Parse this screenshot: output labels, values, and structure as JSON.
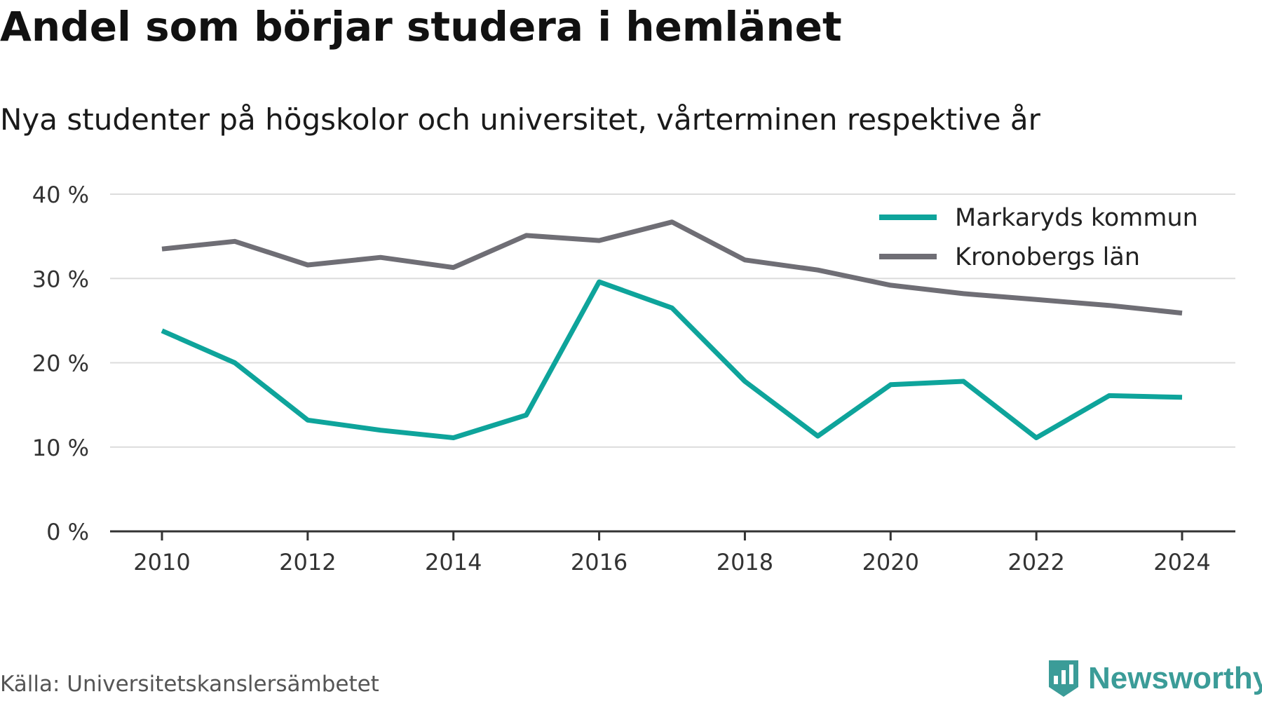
{
  "title": "Andel som börjar studera i hemlänet",
  "subtitle": "Nya studenter på högskolor och universitet, vårterminen respektive år",
  "source": "Källa: Universitetskanslersämbetet",
  "brand": {
    "name": "Newsworthy",
    "icon": "newsworthy-logo-icon",
    "color": "#3b9c98"
  },
  "chart_data": {
    "type": "line",
    "x": [
      2010,
      2011,
      2012,
      2013,
      2014,
      2015,
      2016,
      2017,
      2018,
      2019,
      2020,
      2021,
      2022,
      2023,
      2024
    ],
    "x_ticks": [
      "2010",
      "2012",
      "2014",
      "2016",
      "2018",
      "2020",
      "2022",
      "2024"
    ],
    "y_ticks": [
      "0 %",
      "10 %",
      "20 %",
      "30 %",
      "40 %"
    ],
    "ylim": [
      0,
      40
    ],
    "xlim": [
      2010,
      2024
    ],
    "grid": true,
    "legend_position": "top-right",
    "series": [
      {
        "name": "Markaryds kommun",
        "color": "#0ea49b",
        "values": [
          23.8,
          20.0,
          13.2,
          12.0,
          11.1,
          13.8,
          29.6,
          26.5,
          17.8,
          11.3,
          17.4,
          17.8,
          11.1,
          16.1,
          15.9
        ]
      },
      {
        "name": "Kronobergs län",
        "color": "#6f6e75",
        "values": [
          33.5,
          34.4,
          31.6,
          32.5,
          31.3,
          35.1,
          34.5,
          36.7,
          32.2,
          31.0,
          29.2,
          28.2,
          27.5,
          26.8,
          25.9
        ]
      }
    ]
  }
}
